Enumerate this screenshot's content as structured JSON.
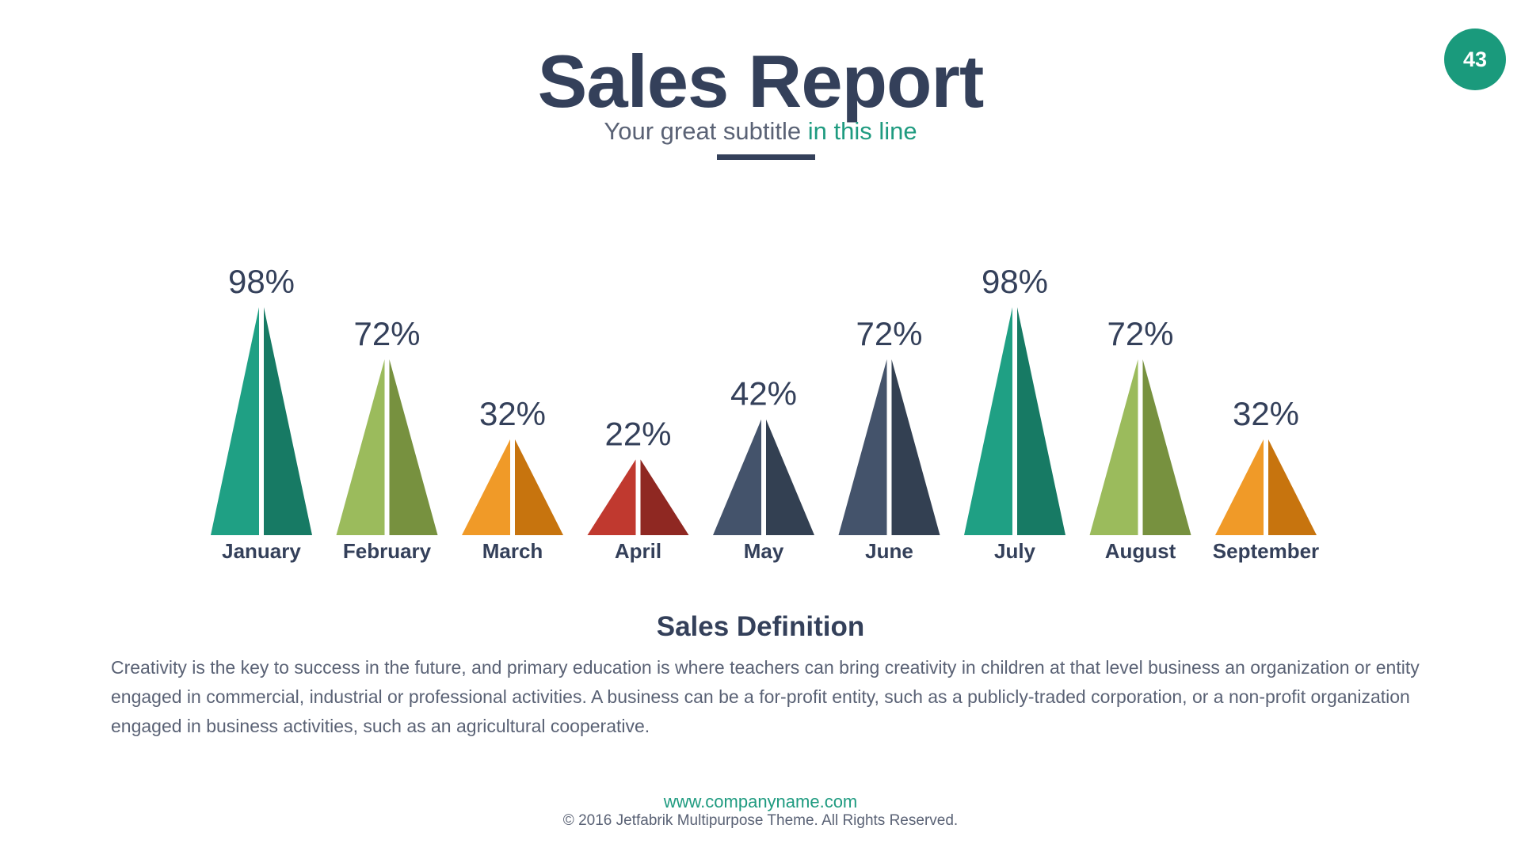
{
  "page": {
    "number": "43",
    "title": "Sales Report",
    "subtitle_main": "Your great subtitle ",
    "subtitle_accent": "in this line"
  },
  "colors": {
    "text": "#34405a",
    "accent": "#1f9b80",
    "badge": "#1a9a7c"
  },
  "chart_data": {
    "type": "bar",
    "title": "",
    "categories": [
      "January",
      "February",
      "March",
      "April",
      "May",
      "June",
      "July",
      "August",
      "September"
    ],
    "values": [
      98,
      72,
      32,
      22,
      42,
      72,
      98,
      72,
      32
    ],
    "value_labels": [
      "98%",
      "72%",
      "32%",
      "22%",
      "42%",
      "72%",
      "98%",
      "72%",
      "32%"
    ],
    "unit": "%",
    "bar_style": "split-triangle",
    "bar_colors": [
      {
        "light": "#1fa084",
        "dark": "#177a64"
      },
      {
        "light": "#9bbb5c",
        "dark": "#77913f"
      },
      {
        "light": "#f09a28",
        "dark": "#c7740e"
      },
      {
        "light": "#c0392f",
        "dark": "#8f2822"
      },
      {
        "light": "#44536b",
        "dark": "#334052"
      },
      {
        "light": "#44536b",
        "dark": "#334052"
      },
      {
        "light": "#1fa084",
        "dark": "#177a64"
      },
      {
        "light": "#9bbb5c",
        "dark": "#77913f"
      },
      {
        "light": "#f09a28",
        "dark": "#c7740e"
      }
    ],
    "grid": false,
    "legend": "none"
  },
  "section": {
    "title": "Sales Definition",
    "body": "Creativity is the key to success in the future, and primary education is where teachers can bring creativity in children at that level business an organization or entity engaged in commercial, industrial or professional activities. A business can be a for-profit entity, such as a publicly-traded corporation, or a non-profit organization engaged in business activities, such as an agricultural cooperative."
  },
  "footer": {
    "url": "www.companyname.com",
    "copyright": "© 2016 Jetfabrik Multipurpose Theme. All Rights Reserved."
  }
}
